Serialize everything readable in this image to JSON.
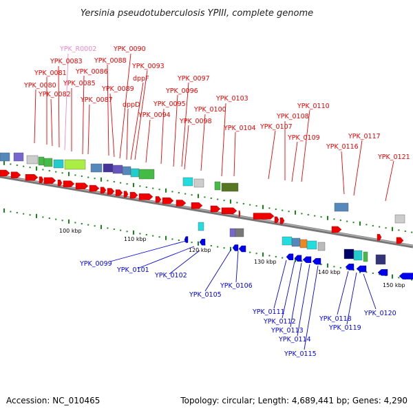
{
  "title": "Yersinia pseudotuberculosis YPIII, complete genome",
  "footer": {
    "accession": "Accession: NC_010465",
    "topology": "Topology: circular; Length: 4,689,441 bp; Genes: 4,290"
  },
  "colors": {
    "forward_gene": "#ee0000",
    "reverse_gene": "#0000ee",
    "rna_label": "#ee88cc",
    "backbone": "#888888",
    "tick": "#118811"
  },
  "scale_labels": [
    "100 kbp",
    "110 kbp",
    "120 kbp",
    "130 kbp",
    "140 kbp",
    "150 kbp"
  ],
  "top_labels": [
    "YPK_R0002",
    "YPK_0083",
    "YPK_0081",
    "YPK_0080",
    "YPK_0082",
    "YPK_0085",
    "YPK_0086",
    "YPK_0087",
    "YPK_0088",
    "YPK_0089",
    "YPK_0090",
    "dppD",
    "dppF",
    "YPK_0093",
    "YPK_0094",
    "YPK_0095",
    "YPK_0096",
    "YPK_0097",
    "YPK_0098",
    "YPK_0100",
    "YPK_0103",
    "YPK_0104",
    "YPK_0107",
    "YPK_0108",
    "YPK_0109",
    "YPK_0110",
    "YPK_0116",
    "YPK_0117",
    "YPK_0121"
  ],
  "bottom_labels": [
    "YPK_0099",
    "YPK_0101",
    "YPK_0102",
    "YPK_0105",
    "YPK_0106",
    "YPK_0111",
    "YPK_0112",
    "YPK_0113",
    "YPK_0114",
    "YPK_0115",
    "YPK_0118",
    "YPK_0119",
    "YPK_0120"
  ]
}
